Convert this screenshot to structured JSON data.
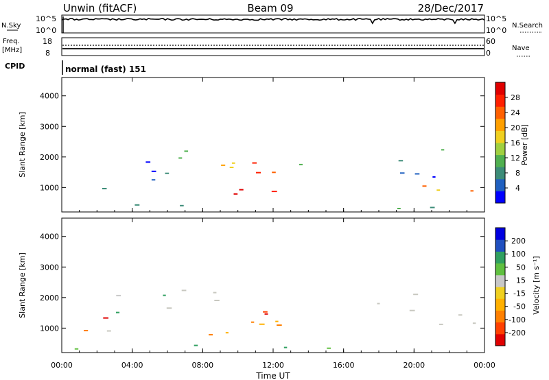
{
  "header": {
    "station": "Unwin (fitACF)",
    "beam": "Beam 09",
    "date": "28/Dec/2017"
  },
  "top_panels": {
    "nsky_label": "N.Sky",
    "nsky_ticks": [
      "10^5",
      "10^0"
    ],
    "nsearch_ticks": [
      "10^5",
      "10^0"
    ],
    "nsearch_label": "N.Search",
    "freq_label_1": "Freq.",
    "freq_label_2": "[MHz]",
    "freq_ticks": [
      "18",
      "8"
    ],
    "nave_ticks": [
      "60",
      "0"
    ],
    "nave_label": "Nave",
    "cpid_label": "CPID",
    "cpid_text": "normal (fast) 151"
  },
  "colors": {
    "power_scale": [
      "#0000ff",
      "#2060c0",
      "#3c8c78",
      "#50b050",
      "#a0d040",
      "#f0d020",
      "#ffa000",
      "#ff6000",
      "#ff2000",
      "#e00000"
    ],
    "velocity_scale": [
      "#e00000",
      "#ff4000",
      "#ff8000",
      "#ffb000",
      "#f0d020",
      "#c8c8c8",
      "#60c040",
      "#30a060",
      "#2050c0",
      "#0000e0"
    ],
    "velocity_main": "#c8c8c0"
  },
  "chart_data": [
    {
      "type": "heatmap",
      "name": "power-panel",
      "ylabel": "Slant Range [km]",
      "yticks": [
        "4000",
        "3000",
        "2000",
        "1000"
      ],
      "ylim": [
        200,
        4600
      ],
      "colorbar_label": "Power [dB]",
      "colorbar_ticks": [
        "28",
        "24",
        "20",
        "16",
        "12",
        "8",
        "4"
      ],
      "colorbar_range": [
        0,
        30
      ],
      "xlim_hours": [
        0,
        24
      ]
    },
    {
      "type": "heatmap",
      "name": "velocity-panel",
      "ylabel": "Slant Range [km]",
      "yticks": [
        "4000",
        "3000",
        "2000",
        "1000"
      ],
      "ylim": [
        200,
        4600
      ],
      "colorbar_label": "Velocity [m s⁻¹]",
      "colorbar_ticks": [
        "200",
        "100",
        "50",
        "15",
        "-15",
        "-50",
        "-100",
        "-200"
      ],
      "xlabel": "Time UT",
      "xticks": [
        "00:00",
        "04:00",
        "08:00",
        "12:00",
        "16:00",
        "20:00",
        "00:00"
      ],
      "xlim_hours": [
        0,
        24
      ]
    }
  ]
}
